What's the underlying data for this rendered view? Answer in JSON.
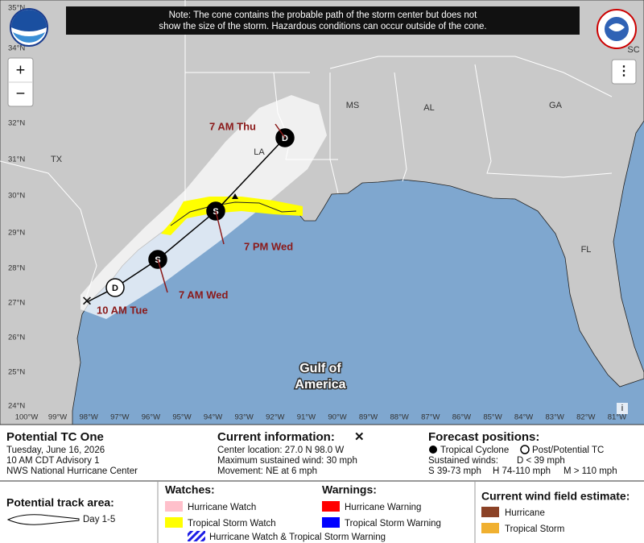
{
  "note": [
    "Note: The cone contains the probable path of the storm center but does not",
    "show the size of the storm. Hazardous conditions can occur outside of the cone."
  ],
  "map": {
    "lat_labels": [
      "35°N",
      "34°N",
      "32°N",
      "31°N",
      "30°N",
      "29°N",
      "28°N",
      "27°N",
      "26°N",
      "25°N",
      "24°N"
    ],
    "lon_labels": [
      "100°W",
      "99°W",
      "98°W",
      "97°W",
      "96°W",
      "95°W",
      "94°W",
      "93°W",
      "92°W",
      "91°W",
      "90°W",
      "89°W",
      "88°W",
      "87°W",
      "86°W",
      "85°W",
      "84°W",
      "83°W",
      "82°W",
      "81°W"
    ],
    "state_labels": [
      "SC",
      "MS",
      "AL",
      "GA",
      "LA",
      "TX",
      "FL"
    ],
    "water_label": [
      "Gulf of",
      "America"
    ],
    "track_points": [
      {
        "symbol": "✕",
        "label": "10 AM Tue"
      },
      {
        "symbol": "D"
      },
      {
        "symbol": "S",
        "label": "7 AM Wed"
      },
      {
        "symbol": "S",
        "label": "7 PM Wed"
      },
      {
        "symbol": "D",
        "label": "7 AM Thu"
      }
    ],
    "zoom_in": "+",
    "zoom_out": "−",
    "menu": "⋮",
    "info": "i"
  },
  "storm": {
    "name": "Potential TC One",
    "date": "Tuesday, June 16, 2026",
    "advisory": "10 AM CDT Advisory 1",
    "source": "NWS National Hurricane Center"
  },
  "current": {
    "title": "Current information:",
    "symbol": "✕",
    "lines": [
      "Center location: 27.0 N 98.0 W",
      "Maximum sustained wind: 30 mph",
      "Movement: NE at 6 mph"
    ]
  },
  "forecast": {
    "title": "Forecast positions:",
    "tropical": "Tropical Cyclone",
    "post": "Post/Potential TC",
    "sustained": "Sustained winds:",
    "d": "D < 39 mph",
    "s": "S 39-73 mph",
    "h": "H 74-110 mph",
    "m": "M > 110 mph"
  },
  "track_area": {
    "title": "Potential track area:",
    "day": "Day 1-5"
  },
  "watches": {
    "title": "Watches:",
    "items": [
      "Hurricane Watch",
      "Tropical Storm Watch",
      "Hurricane Watch & Tropical Storm Warning"
    ]
  },
  "warnings": {
    "title": "Warnings:",
    "items": [
      "Hurricane Warning",
      "Tropical Storm Warning"
    ]
  },
  "wind_field": {
    "title": "Current wind field estimate:",
    "items": [
      "Hurricane",
      "Tropical Storm"
    ]
  }
}
